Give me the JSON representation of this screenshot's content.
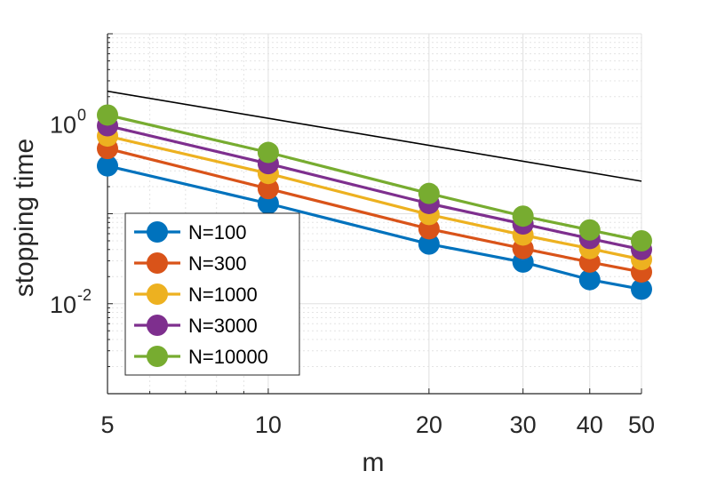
{
  "chart_data": {
    "type": "line",
    "title": "",
    "xlabel": "m",
    "ylabel": "stopping time",
    "xscale": "log",
    "yscale": "log",
    "xlim": [
      5,
      50
    ],
    "ylim": [
      0.001,
      10
    ],
    "grid": true,
    "minor_grid": true,
    "legend_location": "bottom-left",
    "x_ticks": [
      {
        "value": 5,
        "label": "5"
      },
      {
        "value": 10,
        "label": "10"
      },
      {
        "value": 20,
        "label": "20"
      },
      {
        "value": 30,
        "label": "30"
      },
      {
        "value": 40,
        "label": "40"
      },
      {
        "value": 50,
        "label": "50"
      }
    ],
    "y_ticks": [
      {
        "value": 0.01,
        "base": "10",
        "exp": "-2"
      },
      {
        "value": 1,
        "base": "10",
        "exp": "0"
      }
    ],
    "x": [
      5,
      10,
      20,
      30,
      40,
      50
    ],
    "series": [
      {
        "name": "N=100",
        "color": "#0072bd",
        "values": [
          0.34,
          0.13,
          0.046,
          0.029,
          0.0185,
          0.0145
        ]
      },
      {
        "name": "N=300",
        "color": "#d95319",
        "values": [
          0.53,
          0.19,
          0.068,
          0.041,
          0.029,
          0.0225
        ]
      },
      {
        "name": "N=1000",
        "color": "#edb120",
        "values": [
          0.73,
          0.28,
          0.098,
          0.058,
          0.041,
          0.031
        ]
      },
      {
        "name": "N=3000",
        "color": "#7e2f8e",
        "values": [
          0.95,
          0.36,
          0.13,
          0.077,
          0.053,
          0.04
        ]
      },
      {
        "name": "N=10000",
        "color": "#77ac30",
        "values": [
          1.25,
          0.48,
          0.168,
          0.094,
          0.066,
          0.05
        ]
      }
    ],
    "reference_line": {
      "color": "#000000",
      "x": [
        5,
        50
      ],
      "values": [
        2.3,
        0.23
      ]
    }
  }
}
